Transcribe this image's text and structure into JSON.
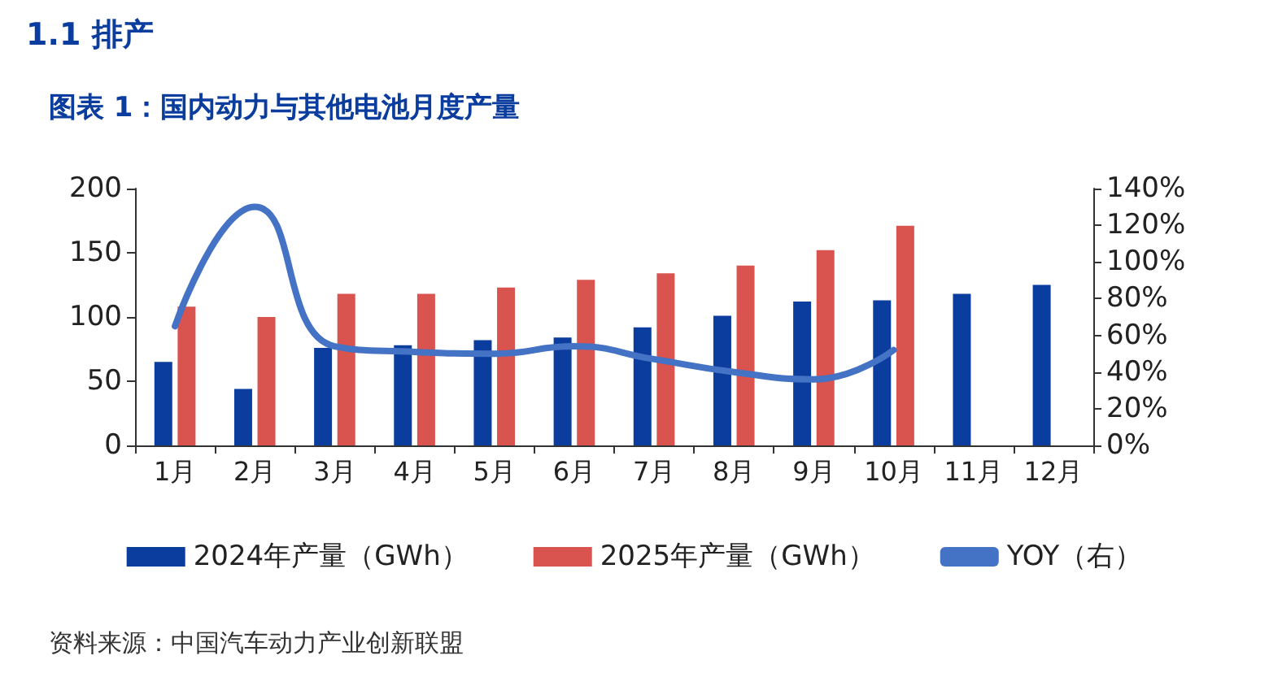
{
  "chart_data": {
    "type": "bar",
    "title": "图表 1：国内动力与其他电池月度产量",
    "annotations": [
      "1.1 排产",
      "资料来源：中国汽车动力产业创新联盟"
    ],
    "categories": [
      "1月",
      "2月",
      "3月",
      "4月",
      "5月",
      "6月",
      "7月",
      "8月",
      "9月",
      "10月",
      "11月",
      "12月"
    ],
    "series": [
      {
        "name": "2024年产量（GWh）",
        "color": "#0a3d9e",
        "values": [
          65,
          44,
          76,
          78,
          82,
          84,
          92,
          101,
          112,
          113,
          118,
          125
        ]
      },
      {
        "name": "2025年产量（GWh）",
        "color": "#d9534f",
        "values": [
          108,
          100,
          118,
          118,
          123,
          129,
          134,
          140,
          152,
          171,
          null,
          null
        ]
      },
      {
        "name": "YOY（右）",
        "type": "line",
        "axis": "y2",
        "color": "#4472c4",
        "values": [
          65,
          130,
          54,
          51,
          50,
          54,
          47,
          40,
          36,
          52,
          null,
          null
        ]
      }
    ],
    "ylim": [
      0,
      200
    ],
    "yticks": [
      0,
      50,
      100,
      150,
      200
    ],
    "y2lim": [
      0,
      140
    ],
    "y2ticks": [
      {
        "value": 0,
        "label": "0%"
      },
      {
        "value": 20,
        "label": "20%"
      },
      {
        "value": 40,
        "label": "40%"
      },
      {
        "value": 60,
        "label": "60%"
      },
      {
        "value": 80,
        "label": "80%"
      },
      {
        "value": 100,
        "label": "100%"
      },
      {
        "value": 120,
        "label": "120%"
      },
      {
        "value": 140,
        "label": "140%"
      }
    ],
    "legend": "bottom",
    "grid": false,
    "marker": "none"
  }
}
